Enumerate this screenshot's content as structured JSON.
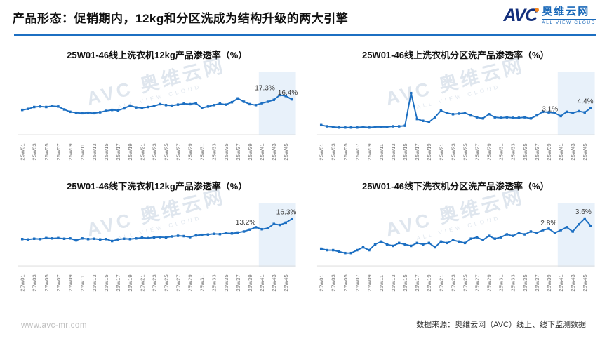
{
  "header": {
    "title": "产品形态：促销期内，12kg和分区洗成为结构升级的两大引擎",
    "logo": {
      "avc": "AVC",
      "cn": "奥维云网",
      "en": "ALL VIEW CLOUD"
    }
  },
  "watermark": {
    "main": "AVC 奥维云网",
    "sub": "ALL VIEW CLOUD"
  },
  "footer": {
    "website": "www.avc-mr.com",
    "source": "数据来源：奥维云网（AVC）线上、线下监测数据"
  },
  "colors": {
    "accent": "#1c6fc2",
    "line": "#1c6fc2",
    "band": "#e8f1fa",
    "axis": "#d9d9d9",
    "tick": "#767676",
    "annotation": "#3a3a3a",
    "logo_navy": "#132f7b",
    "logo_blue": "#1b69b9",
    "logo_orange": "#f5871f"
  },
  "weeks": [
    "25W01",
    "25W02",
    "25W03",
    "25W04",
    "25W05",
    "25W06",
    "25W07",
    "25W08",
    "25W09",
    "25W10",
    "25W11",
    "25W12",
    "25W13",
    "25W14",
    "25W15",
    "25W16",
    "25W17",
    "25W18",
    "25W19",
    "25W20",
    "25W21",
    "25W22",
    "25W23",
    "25W24",
    "25W25",
    "25W26",
    "25W27",
    "25W28",
    "25W29",
    "25W30",
    "25W31",
    "25W32",
    "25W33",
    "25W34",
    "25W35",
    "25W36",
    "25W37",
    "25W38",
    "25W39",
    "25W40",
    "25W41",
    "25W42",
    "25W43",
    "25W44",
    "25W45",
    "25W46"
  ],
  "tick_step": 2,
  "chart_data": [
    {
      "type": "line",
      "title": "25W01-46线上洗衣机12kg产品渗透率（%）",
      "ylabel": "渗透率(%)",
      "ylim": [
        9,
        21
      ],
      "values": [
        14.2,
        14.4,
        14.8,
        14.9,
        14.8,
        15.0,
        14.9,
        14.3,
        13.8,
        13.6,
        13.5,
        13.6,
        13.5,
        13.7,
        14.0,
        14.2,
        14.1,
        14.5,
        15.1,
        14.7,
        14.6,
        14.8,
        15.0,
        15.4,
        15.2,
        15.1,
        15.3,
        15.5,
        15.4,
        15.6,
        14.6,
        14.9,
        15.2,
        15.5,
        15.3,
        15.8,
        16.6,
        15.9,
        15.4,
        15.2,
        15.6,
        15.9,
        16.3,
        17.3,
        17.1,
        16.4
      ],
      "annotations": [
        {
          "week": "25W44",
          "label": "17.3%",
          "dx": -22
        },
        {
          "week": "25W46",
          "label": "16.4%",
          "dx": -6
        }
      ],
      "highlight_band": {
        "start_week": "25W41",
        "end_week": "25W46"
      }
    },
    {
      "type": "line",
      "title": "25W01-46线上洗衣机分区洗产品渗透率（%）",
      "ylabel": "渗透率(%)",
      "ylim": [
        0,
        9.5
      ],
      "values": [
        1.6,
        1.4,
        1.3,
        1.2,
        1.2,
        1.2,
        1.2,
        1.3,
        1.2,
        1.3,
        1.3,
        1.3,
        1.4,
        1.4,
        1.5,
        6.9,
        2.6,
        2.3,
        2.1,
        2.9,
        4.0,
        3.6,
        3.4,
        3.5,
        3.6,
        3.2,
        2.9,
        2.7,
        3.4,
        2.9,
        2.8,
        2.9,
        2.8,
        2.8,
        2.9,
        2.7,
        3.2,
        3.8,
        3.7,
        3.6,
        3.1,
        3.8,
        3.6,
        3.9,
        3.7,
        4.4
      ],
      "annotations": [
        {
          "week": "25W41",
          "label": "3.1%",
          "dx": -16
        },
        {
          "week": "25W46",
          "label": "4.4%",
          "dx": -8
        }
      ],
      "highlight_band": {
        "start_week": "25W41",
        "end_week": "25W46"
      }
    },
    {
      "type": "line",
      "title": "25W01-46线下洗衣机12kg产品渗透率（%）",
      "ylabel": "渗透率(%)",
      "ylim": [
        2,
        19.5
      ],
      "values": [
        10.2,
        10.1,
        10.3,
        10.2,
        10.5,
        10.4,
        10.5,
        10.3,
        10.4,
        9.8,
        10.4,
        10.2,
        10.3,
        10.1,
        10.2,
        9.6,
        10.1,
        10.3,
        10.2,
        10.4,
        10.6,
        10.5,
        10.7,
        10.8,
        10.7,
        11.0,
        11.2,
        11.1,
        10.8,
        11.3,
        11.5,
        11.6,
        11.8,
        11.7,
        12.0,
        11.9,
        12.2,
        12.5,
        13.1,
        13.8,
        13.2,
        13.5,
        14.8,
        14.5,
        15.2,
        16.3
      ],
      "annotations": [
        {
          "week": "25W41",
          "label": "13.2%",
          "dx": -24
        },
        {
          "week": "25W46",
          "label": "16.3%",
          "dx": -8
        }
      ],
      "highlight_band": {
        "start_week": "25W41",
        "end_week": "25W46"
      }
    },
    {
      "type": "line",
      "title": "25W01-46线下洗衣机分区洗产品渗透率（%）",
      "ylabel": "渗透率(%)",
      "ylim": [
        0.3,
        4.3
      ],
      "values": [
        1.5,
        1.4,
        1.4,
        1.3,
        1.2,
        1.2,
        1.4,
        1.6,
        1.4,
        1.8,
        2.0,
        1.8,
        1.7,
        1.9,
        1.8,
        1.7,
        1.9,
        1.8,
        1.9,
        1.6,
        2.0,
        1.9,
        2.1,
        2.0,
        1.9,
        2.2,
        2.3,
        2.1,
        2.4,
        2.2,
        2.3,
        2.5,
        2.4,
        2.6,
        2.5,
        2.7,
        2.6,
        2.8,
        2.9,
        2.6,
        2.8,
        3.0,
        2.7,
        3.2,
        3.6,
        3.1
      ],
      "annotations": [
        {
          "week": "25W41",
          "label": "2.8%",
          "dx": -18
        },
        {
          "week": "25W45",
          "label": "3.6%",
          "dx": -2
        }
      ],
      "highlight_band": {
        "start_week": "25W41",
        "end_week": "25W46"
      }
    }
  ]
}
